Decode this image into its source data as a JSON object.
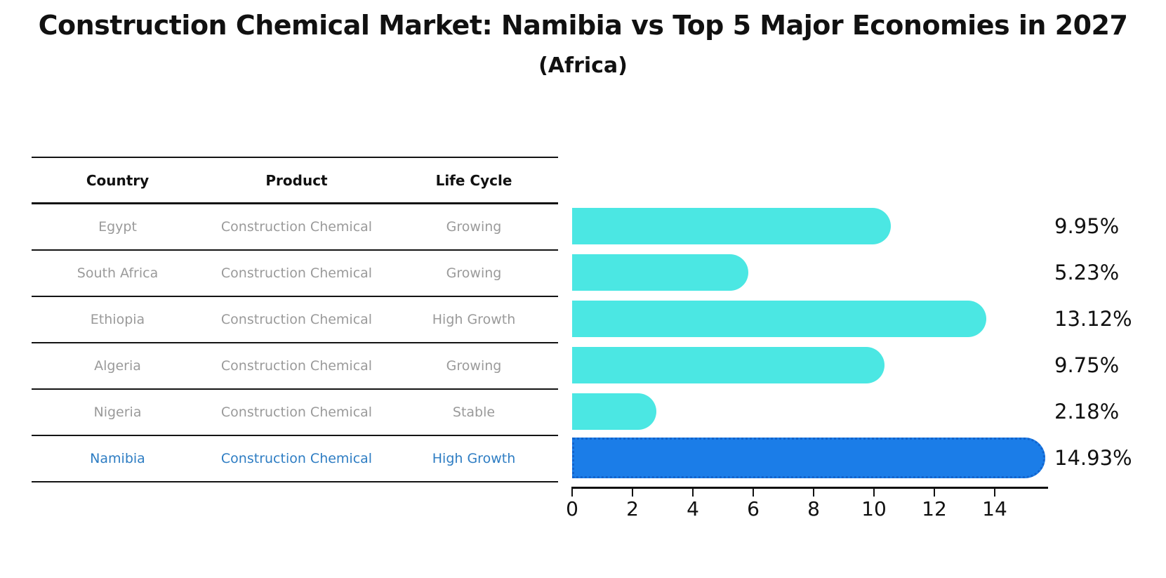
{
  "title": "Construction Chemical Market: Namibia vs Top 5 Major Economies in 2027",
  "subtitle": "(Africa)",
  "table": {
    "headers": [
      "Country",
      "Product",
      "Life Cycle"
    ],
    "rows": [
      {
        "country": "Egypt",
        "product": "Construction Chemical",
        "life_cycle": "Growing",
        "highlight": false
      },
      {
        "country": "South Africa",
        "product": "Construction Chemical",
        "life_cycle": "Growing",
        "highlight": false
      },
      {
        "country": "Ethiopia",
        "product": "Construction Chemical",
        "life_cycle": "High Growth",
        "highlight": false
      },
      {
        "country": "Algeria",
        "product": "Construction Chemical",
        "life_cycle": "Growing",
        "highlight": false
      },
      {
        "country": "Nigeria",
        "product": "Construction Chemical",
        "life_cycle": "Stable",
        "highlight": false
      },
      {
        "country": "Namibia",
        "product": "Construction Chemical",
        "life_cycle": "High Growth",
        "highlight": true
      }
    ]
  },
  "chart_data": {
    "type": "bar",
    "orientation": "horizontal",
    "title": "Construction Chemical Market: Namibia vs Top 5 Major Economies in 2027 (Africa)",
    "categories": [
      "Egypt",
      "South Africa",
      "Ethiopia",
      "Algeria",
      "Nigeria",
      "Namibia"
    ],
    "values": [
      9.95,
      5.23,
      13.12,
      9.75,
      2.18,
      14.93
    ],
    "value_labels": [
      "9.95%",
      "5.23%",
      "13.12%",
      "9.75%",
      "2.18%",
      "14.93%"
    ],
    "xlabel": "",
    "ylabel": "",
    "xlim": [
      0,
      15.75
    ],
    "xticks": [
      0,
      2,
      4,
      6,
      8,
      10,
      12,
      14
    ],
    "grid": false,
    "legend": false,
    "highlight_index": 5
  },
  "colors": {
    "bar": "#4BE7E3",
    "highlight_bar": "#1B7DE8",
    "highlight_bar_edge": "#1263CC",
    "row_text": "#9A9A9A",
    "highlight_text": "#2E7DC3",
    "axis": "#111111"
  }
}
